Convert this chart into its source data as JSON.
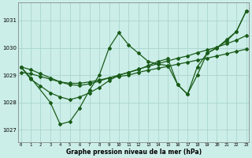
{
  "title": "Graphe pression niveau de la mer (hPa)",
  "bg_color": "#cceee8",
  "line_color": "#1a5c1a",
  "grid_color": "#aad4ce",
  "series": [
    {
      "x": [
        0,
        1,
        3,
        4,
        5,
        6,
        7,
        8,
        9,
        10,
        11,
        12,
        13,
        14,
        15,
        16,
        17,
        18,
        19,
        20,
        21,
        22,
        23
      ],
      "y": [
        1029.3,
        1028.9,
        1028.0,
        1027.2,
        1027.3,
        1027.8,
        1028.45,
        1029.0,
        1030.0,
        1030.55,
        1030.1,
        1029.8,
        1029.5,
        1029.4,
        1029.35,
        1028.65,
        1028.3,
        1029.0,
        1029.8,
        1030.0,
        1030.3,
        1030.6,
        1031.35
      ]
    },
    {
      "x": [
        0,
        1,
        2,
        3,
        4,
        5,
        6,
        7,
        8,
        9,
        10,
        11,
        12,
        13,
        14,
        15,
        16,
        17,
        18,
        19,
        20,
        21,
        22,
        23
      ],
      "y": [
        1029.1,
        1029.05,
        1028.95,
        1028.85,
        1028.75,
        1028.7,
        1028.7,
        1028.75,
        1028.82,
        1028.9,
        1028.95,
        1029.0,
        1029.1,
        1029.18,
        1029.25,
        1029.32,
        1029.4,
        1029.47,
        1029.55,
        1029.62,
        1029.7,
        1029.78,
        1029.87,
        1029.95
      ]
    },
    {
      "x": [
        0,
        1,
        2,
        3,
        4,
        5,
        6,
        7,
        8,
        9,
        10,
        11,
        12,
        13,
        14,
        15,
        16,
        17,
        18,
        19,
        20,
        21,
        22,
        23
      ],
      "y": [
        1029.3,
        1029.2,
        1029.05,
        1028.9,
        1028.75,
        1028.65,
        1028.62,
        1028.68,
        1028.78,
        1028.9,
        1029.0,
        1029.1,
        1029.22,
        1029.32,
        1029.42,
        1029.52,
        1029.62,
        1029.7,
        1029.82,
        1029.92,
        1030.02,
        1030.15,
        1030.28,
        1030.45
      ]
    },
    {
      "x": [
        0,
        1,
        2,
        3,
        4,
        5,
        6,
        7,
        8,
        9,
        10,
        11,
        12,
        13,
        14,
        15,
        16,
        17,
        18,
        19,
        20,
        21,
        22,
        23
      ],
      "y": [
        1029.3,
        1028.85,
        1028.6,
        1028.35,
        1028.2,
        1028.1,
        1028.2,
        1028.35,
        1028.55,
        1028.8,
        1029.0,
        1029.1,
        1029.2,
        1029.35,
        1029.5,
        1029.6,
        1028.65,
        1028.3,
        1029.3,
        1029.8,
        1030.0,
        1030.25,
        1030.6,
        1031.35
      ]
    }
  ],
  "yticks": [
    1027,
    1028,
    1029,
    1030,
    1031
  ],
  "xtick_labels": [
    "0",
    "1",
    "2",
    "3",
    "4",
    "5",
    "6",
    "7",
    "8",
    "9",
    "10",
    "11",
    "12",
    "13",
    "14",
    "15",
    "16",
    "17",
    "18",
    "19",
    "20",
    "21",
    "22",
    "23"
  ],
  "xtick_positions": [
    0,
    1,
    2,
    3,
    4,
    5,
    6,
    7,
    8,
    9,
    10,
    11,
    12,
    13,
    14,
    15,
    16,
    17,
    18,
    19,
    20,
    21,
    22,
    23
  ],
  "xlim": [
    -0.3,
    23.3
  ],
  "ylim": [
    1026.55,
    1031.65
  ],
  "marker": "D",
  "markersize": 2.0,
  "linewidth": 0.9
}
